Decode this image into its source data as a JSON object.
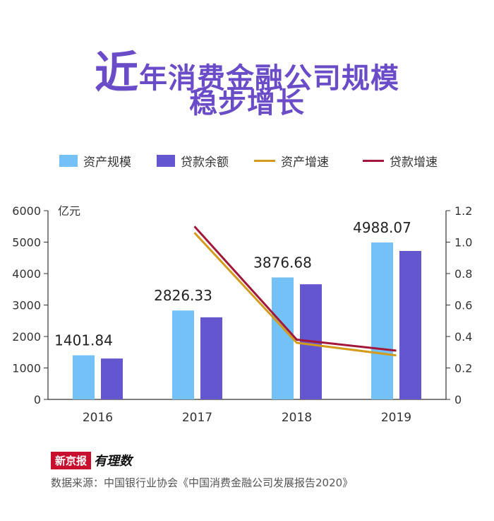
{
  "title": {
    "first_char": "近",
    "line1_rest": "年消费金融公司规模",
    "line2": "稳步增长"
  },
  "legend": [
    {
      "label": "资产规模",
      "kind": "box",
      "color": "#74c1f7"
    },
    {
      "label": "贷款余额",
      "kind": "box",
      "color": "#6356cf"
    },
    {
      "label": "资产增速",
      "kind": "line",
      "color": "#d49a1c"
    },
    {
      "label": "贷款增速",
      "kind": "line",
      "color": "#a3163c"
    }
  ],
  "chart_data": {
    "type": "bar",
    "categories": [
      "2016",
      "2017",
      "2018",
      "2019"
    ],
    "series": [
      {
        "name": "资产规模",
        "type": "bar",
        "axis": "left",
        "color": "#74c1f7",
        "values": [
          1401.84,
          2826.33,
          3876.68,
          4988.07
        ]
      },
      {
        "name": "贷款余额",
        "type": "bar",
        "axis": "left",
        "color": "#6356cf",
        "values": [
          1300,
          2610,
          3660,
          4720
        ]
      },
      {
        "name": "资产增速",
        "type": "line",
        "axis": "right",
        "color": "#d49a1c",
        "values": [
          null,
          1.06,
          0.36,
          0.28
        ]
      },
      {
        "name": "贷款增速",
        "type": "line",
        "axis": "right",
        "color": "#a3163c",
        "values": [
          null,
          1.1,
          0.38,
          0.31
        ]
      }
    ],
    "data_labels": [
      "1401.84",
      "2826.33",
      "3876.68",
      "4988.07"
    ],
    "y_left": {
      "label": "亿元",
      "min": 0,
      "max": 6000,
      "ticks": [
        0,
        1000,
        2000,
        3000,
        4000,
        5000,
        6000
      ]
    },
    "y_right": {
      "min": 0,
      "max": 1.2,
      "ticks": [
        "0",
        "0.2",
        "0.4",
        "0.6",
        "0.8",
        "1.0",
        "1.2"
      ]
    }
  },
  "footer": {
    "logo_box": "新京报",
    "logo_script": "有理数",
    "source": "数据来源：中国银行业协会《中国消费金融公司发展报告2020》"
  }
}
